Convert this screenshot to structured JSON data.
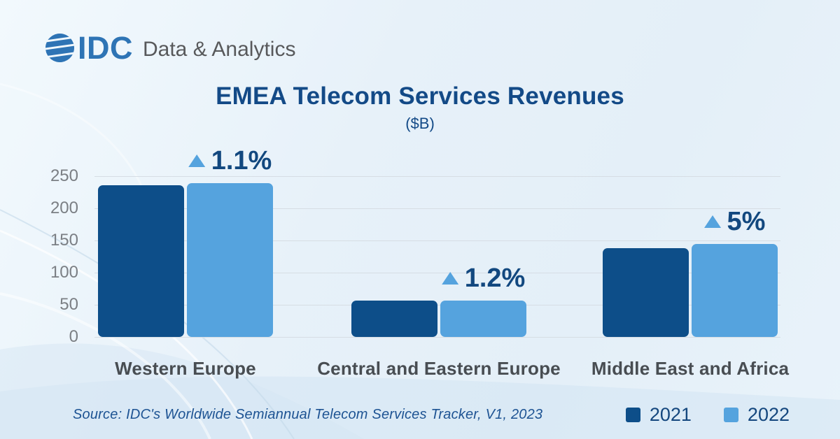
{
  "brand": {
    "logo_text": "IDC",
    "logo_suffix": "Data & Analytics",
    "logo_color": "#2e74b5"
  },
  "title": "EMEA Telecom Services Revenues",
  "subtitle": "($B)",
  "source": "Source: IDC's Worldwide Semiannual Telecom Services Tracker, V1, 2023",
  "colors": {
    "title_navy": "#134a87",
    "annotation_navy": "#12487f",
    "triangle_blue": "#55a3de",
    "gridline": "#d6dde4",
    "ytick_gray": "#7b7f84",
    "xlabel_gray": "#484d52",
    "bar_2021": "#0d4e89",
    "bar_2022": "#55a3de"
  },
  "chart_data": {
    "type": "bar",
    "title": "EMEA Telecom Services Revenues",
    "subtitle": "($B)",
    "categories": [
      "Western Europe",
      "Central and Eastern Europe",
      "Middle East and Africa"
    ],
    "series": [
      {
        "name": "2021",
        "color": "#0d4e89",
        "values": [
          236,
          56,
          138
        ]
      },
      {
        "name": "2022",
        "color": "#55a3de",
        "values": [
          239,
          57,
          145
        ]
      }
    ],
    "growth_labels": [
      "1.1%",
      "1.2%",
      "5%"
    ],
    "growth_marker": "up-triangle",
    "yticks": [
      0,
      50,
      100,
      150,
      200,
      250
    ],
    "ylim": [
      0,
      250
    ],
    "grid": true,
    "legend_position": "bottom-right"
  }
}
